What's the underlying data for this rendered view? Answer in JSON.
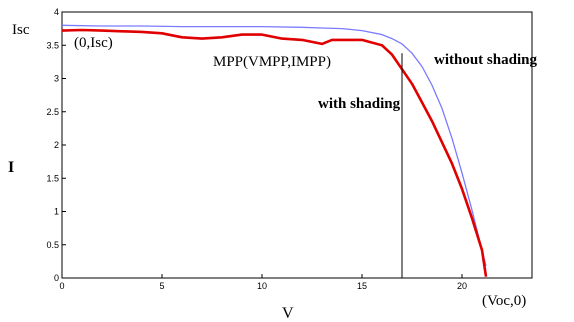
{
  "chart_data": {
    "type": "line",
    "xlabel": "V",
    "ylabel": "I",
    "xlim": [
      0,
      23.5
    ],
    "ylim": [
      0,
      4
    ],
    "x_ticks": [
      "0",
      "5",
      "10",
      "15",
      "20"
    ],
    "y_ticks": [
      "0",
      "0.5",
      "1",
      "1.5",
      "2",
      "2.5",
      "3",
      "3.5",
      "4"
    ],
    "series": [
      {
        "name": "without shading",
        "color": "#7b7bff",
        "x": [
          0,
          2,
          4,
          6,
          8,
          10,
          12,
          13,
          14,
          15,
          16,
          16.5,
          17,
          17.5,
          18,
          18.5,
          19,
          19.5,
          20,
          20.5,
          21,
          21.2
        ],
        "y": [
          3.8,
          3.79,
          3.79,
          3.78,
          3.78,
          3.78,
          3.77,
          3.76,
          3.75,
          3.72,
          3.66,
          3.6,
          3.52,
          3.38,
          3.18,
          2.9,
          2.55,
          2.1,
          1.58,
          1.02,
          0.42,
          0.18
        ]
      },
      {
        "name": "with shading",
        "color": "#e00000",
        "x": [
          0,
          1,
          2,
          3,
          4,
          5,
          6,
          7,
          8,
          9,
          10,
          11,
          12,
          13,
          13.5,
          14,
          15,
          16,
          16.5,
          17,
          17.5,
          18,
          18.5,
          19,
          19.5,
          20,
          20.5,
          21,
          21.2
        ],
        "y": [
          3.72,
          3.73,
          3.72,
          3.71,
          3.7,
          3.68,
          3.62,
          3.6,
          3.62,
          3.66,
          3.66,
          3.6,
          3.58,
          3.52,
          3.58,
          3.58,
          3.58,
          3.5,
          3.36,
          3.14,
          2.92,
          2.64,
          2.36,
          2.04,
          1.72,
          1.34,
          0.9,
          0.42,
          0.02
        ]
      }
    ],
    "annotations": {
      "isc": "Isc",
      "point_0_isc": "(0,Isc)",
      "mpp": "MPP(VMPP,IMPP)",
      "without_shading": "without shading",
      "with_shading": "with shading",
      "voc": "(Voc,0)"
    },
    "vmpp_marker_x": 17
  }
}
